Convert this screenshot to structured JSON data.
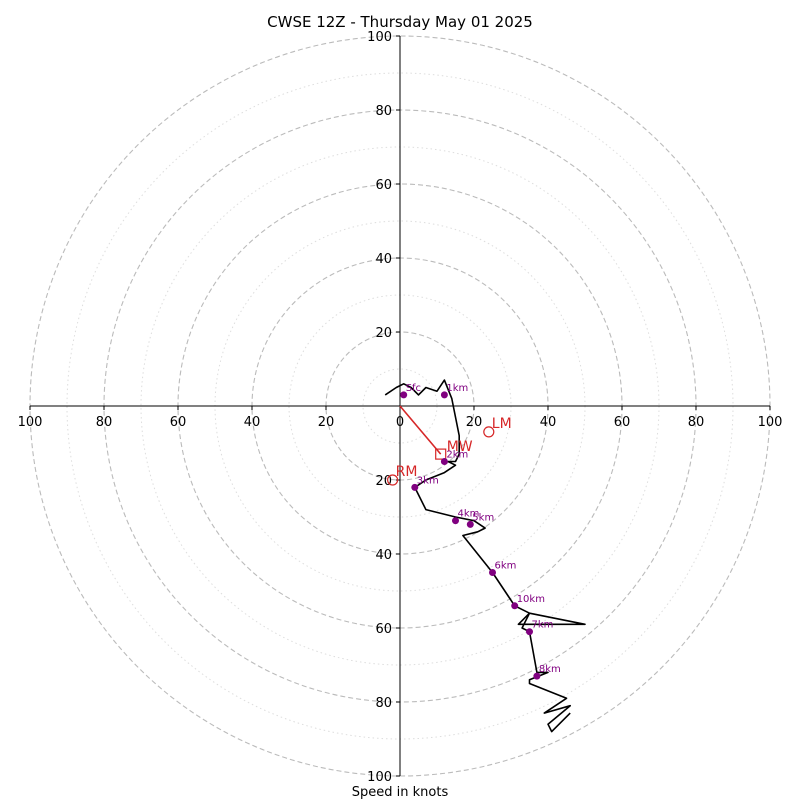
{
  "chart_data": {
    "type": "hodograph",
    "title": "CWSE 12Z - Thursday May 01 2025",
    "xlabel": "Speed in knots",
    "xlim": [
      -100,
      100
    ],
    "ylim": [
      -100,
      100
    ],
    "major_rings": [
      20,
      40,
      60,
      80,
      100
    ],
    "minor_rings": [
      10,
      30,
      50,
      70,
      90
    ],
    "x_tick_labels": [
      "100",
      "80",
      "60",
      "40",
      "20",
      "0",
      "20",
      "40",
      "60",
      "80",
      "100"
    ],
    "y_tick_labels_top": [
      "20",
      "40",
      "60",
      "80",
      "100"
    ],
    "y_tick_labels_bottom": [
      "20",
      "40",
      "60",
      "80",
      "100"
    ],
    "colors": {
      "trace": "#000000",
      "points": "#800080",
      "motion": "#d62728",
      "major_ring": "#bbbbbb",
      "minor_ring": "#dddddd"
    },
    "trace": [
      [
        -4,
        3
      ],
      [
        -1,
        5
      ],
      [
        1,
        6
      ],
      [
        3,
        5
      ],
      [
        5,
        3
      ],
      [
        7,
        5
      ],
      [
        10,
        4
      ],
      [
        12,
        7
      ],
      [
        14,
        2
      ],
      [
        15,
        -3
      ],
      [
        16,
        -8
      ],
      [
        16,
        -13
      ],
      [
        15,
        -15
      ],
      [
        13,
        -15
      ],
      [
        15,
        -16
      ],
      [
        12,
        -18
      ],
      [
        7,
        -20
      ],
      [
        4,
        -22
      ],
      [
        7,
        -28
      ],
      [
        15,
        -30
      ],
      [
        20,
        -31
      ],
      [
        23,
        -33
      ],
      [
        21,
        -34
      ],
      [
        17,
        -35
      ],
      [
        25,
        -45
      ],
      [
        31,
        -54
      ],
      [
        35,
        -56
      ],
      [
        32,
        -59
      ],
      [
        50,
        -59
      ],
      [
        35,
        -56
      ],
      [
        33,
        -60
      ],
      [
        35,
        -61
      ],
      [
        37,
        -72
      ],
      [
        40,
        -72
      ],
      [
        35,
        -74
      ],
      [
        35,
        -75
      ],
      [
        45,
        -79
      ],
      [
        39,
        -83
      ],
      [
        46,
        -81
      ],
      [
        40,
        -86
      ],
      [
        41,
        -88
      ],
      [
        46,
        -83
      ]
    ],
    "height_points": [
      {
        "label": "Sfc",
        "x": 1,
        "y": 3
      },
      {
        "label": "1km",
        "x": 12,
        "y": 3
      },
      {
        "label": "2km",
        "x": 12,
        "y": -15
      },
      {
        "label": "3km",
        "x": 4,
        "y": -22
      },
      {
        "label": "4km",
        "x": 15,
        "y": -31
      },
      {
        "label": "5km",
        "x": 19,
        "y": -32
      },
      {
        "label": "6km",
        "x": 25,
        "y": -45
      },
      {
        "label": "10km",
        "x": 31,
        "y": -54
      },
      {
        "label": "7km",
        "x": 35,
        "y": -61
      },
      {
        "label": "8km",
        "x": 37,
        "y": -73
      }
    ],
    "mean_wind_vector": {
      "label": "MW",
      "x": 11,
      "y": -13
    },
    "storm_motions": [
      {
        "label": "LM",
        "x": 24,
        "y": -7
      },
      {
        "label": "RM",
        "x": -2,
        "y": -20
      }
    ]
  }
}
